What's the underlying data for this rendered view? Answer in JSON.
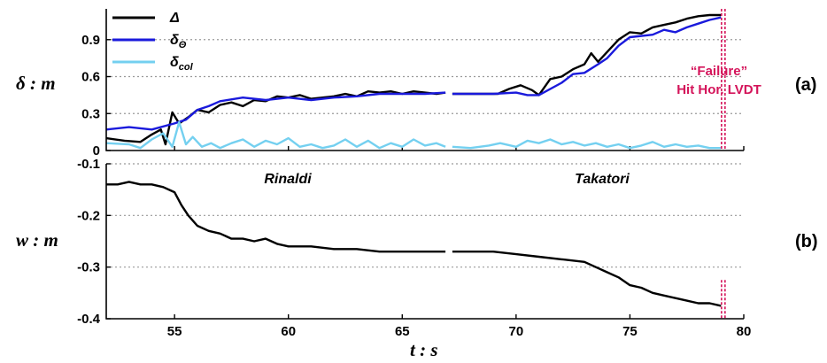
{
  "chart_data": [
    {
      "id": "a",
      "type": "line",
      "panel_label": "(a)",
      "ylabel": "δ : m",
      "xlim": [
        52,
        80
      ],
      "ylim": [
        0,
        1.15
      ],
      "yticks": [
        "0",
        "0.3",
        "0.6",
        "0.9"
      ],
      "ytick_values": [
        0,
        0.3,
        0.6,
        0.9
      ],
      "grid": "horizontal dotted",
      "legend_position": "top-left",
      "legend": [
        {
          "main": "Δ",
          "sub": ""
        },
        {
          "main": "δ",
          "sub": "Θ"
        },
        {
          "main": "δ",
          "sub": "col"
        }
      ],
      "failure_label": [
        "“Failure”",
        "Hit Hor. LVDT"
      ],
      "failure_x": 79.1,
      "colors": {
        "delta": "#000000",
        "theta": "#1a1adc",
        "col": "#74d0f0",
        "failure": "#d4145a"
      },
      "series": [
        {
          "name": "Δ",
          "segments": [
            [
              [
                52,
                0.1
              ],
              [
                52.8,
                0.08
              ],
              [
                53.5,
                0.07
              ],
              [
                54,
                0.13
              ],
              [
                54.4,
                0.17
              ],
              [
                54.6,
                0.05
              ],
              [
                54.9,
                0.31
              ],
              [
                55.2,
                0.22
              ],
              [
                55.6,
                0.27
              ],
              [
                56,
                0.33
              ],
              [
                56.5,
                0.31
              ],
              [
                57,
                0.37
              ],
              [
                57.5,
                0.39
              ],
              [
                58,
                0.36
              ],
              [
                58.5,
                0.41
              ],
              [
                59,
                0.4
              ],
              [
                59.5,
                0.44
              ],
              [
                60,
                0.43
              ],
              [
                60.5,
                0.45
              ],
              [
                61,
                0.42
              ],
              [
                61.5,
                0.43
              ],
              [
                62,
                0.44
              ],
              [
                62.5,
                0.46
              ],
              [
                63,
                0.44
              ],
              [
                63.5,
                0.48
              ],
              [
                64,
                0.47
              ],
              [
                64.5,
                0.48
              ],
              [
                65,
                0.46
              ],
              [
                65.5,
                0.48
              ],
              [
                66,
                0.47
              ],
              [
                66.5,
                0.46
              ],
              [
                66.9,
                0.47
              ]
            ],
            [
              [
                67.2,
                0.46
              ],
              [
                68,
                0.46
              ],
              [
                68.8,
                0.46
              ],
              [
                69.2,
                0.46
              ],
              [
                69.7,
                0.5
              ],
              [
                70.2,
                0.53
              ],
              [
                70.7,
                0.49
              ],
              [
                71,
                0.45
              ],
              [
                71.5,
                0.58
              ],
              [
                72,
                0.6
              ],
              [
                72.5,
                0.66
              ],
              [
                73,
                0.7
              ],
              [
                73.3,
                0.79
              ],
              [
                73.6,
                0.72
              ],
              [
                74,
                0.8
              ],
              [
                74.5,
                0.9
              ],
              [
                75,
                0.96
              ],
              [
                75.5,
                0.95
              ],
              [
                76,
                1.0
              ],
              [
                76.5,
                1.02
              ],
              [
                77,
                1.04
              ],
              [
                77.5,
                1.07
              ],
              [
                78,
                1.09
              ],
              [
                78.5,
                1.1
              ],
              [
                79,
                1.1
              ]
            ]
          ]
        },
        {
          "name": "δΘ",
          "segments": [
            [
              [
                52,
                0.17
              ],
              [
                53,
                0.19
              ],
              [
                54,
                0.17
              ],
              [
                55,
                0.22
              ],
              [
                55.5,
                0.25
              ],
              [
                56,
                0.33
              ],
              [
                56.5,
                0.36
              ],
              [
                57,
                0.4
              ],
              [
                58,
                0.43
              ],
              [
                59,
                0.41
              ],
              [
                60,
                0.43
              ],
              [
                61,
                0.41
              ],
              [
                62,
                0.43
              ],
              [
                63,
                0.44
              ],
              [
                64,
                0.46
              ],
              [
                65,
                0.46
              ],
              [
                66,
                0.46
              ],
              [
                66.9,
                0.47
              ]
            ],
            [
              [
                67.2,
                0.46
              ],
              [
                68,
                0.46
              ],
              [
                69,
                0.46
              ],
              [
                70,
                0.47
              ],
              [
                70.5,
                0.45
              ],
              [
                71,
                0.45
              ],
              [
                72,
                0.55
              ],
              [
                72.5,
                0.62
              ],
              [
                73,
                0.63
              ],
              [
                73.6,
                0.7
              ],
              [
                74,
                0.75
              ],
              [
                74.5,
                0.85
              ],
              [
                75,
                0.92
              ],
              [
                76,
                0.94
              ],
              [
                76.5,
                0.98
              ],
              [
                77,
                0.96
              ],
              [
                77.5,
                1.0
              ],
              [
                78,
                1.03
              ],
              [
                78.5,
                1.06
              ],
              [
                79,
                1.08
              ]
            ]
          ]
        },
        {
          "name": "δcol",
          "segments": [
            [
              [
                52,
                0.06
              ],
              [
                53,
                0.05
              ],
              [
                53.5,
                0.02
              ],
              [
                54,
                0.09
              ],
              [
                54.5,
                0.14
              ],
              [
                54.9,
                0.03
              ],
              [
                55.2,
                0.23
              ],
              [
                55.5,
                0.05
              ],
              [
                55.8,
                0.11
              ],
              [
                56.2,
                0.03
              ],
              [
                56.6,
                0.06
              ],
              [
                57,
                0.02
              ],
              [
                57.5,
                0.06
              ],
              [
                58,
                0.09
              ],
              [
                58.5,
                0.03
              ],
              [
                59,
                0.08
              ],
              [
                59.5,
                0.05
              ],
              [
                60,
                0.1
              ],
              [
                60.5,
                0.03
              ],
              [
                61,
                0.05
              ],
              [
                61.5,
                0.02
              ],
              [
                62,
                0.04
              ],
              [
                62.5,
                0.09
              ],
              [
                63,
                0.03
              ],
              [
                63.5,
                0.08
              ],
              [
                64,
                0.02
              ],
              [
                64.5,
                0.06
              ],
              [
                65,
                0.03
              ],
              [
                65.5,
                0.09
              ],
              [
                66,
                0.04
              ],
              [
                66.5,
                0.06
              ],
              [
                66.9,
                0.03
              ]
            ],
            [
              [
                67.2,
                0.03
              ],
              [
                68,
                0.02
              ],
              [
                68.8,
                0.04
              ],
              [
                69.3,
                0.06
              ],
              [
                70,
                0.03
              ],
              [
                70.5,
                0.08
              ],
              [
                71,
                0.06
              ],
              [
                71.5,
                0.09
              ],
              [
                72,
                0.05
              ],
              [
                72.5,
                0.07
              ],
              [
                73,
                0.04
              ],
              [
                73.5,
                0.06
              ],
              [
                74,
                0.03
              ],
              [
                74.5,
                0.05
              ],
              [
                75,
                0.02
              ],
              [
                75.5,
                0.04
              ],
              [
                76,
                0.07
              ],
              [
                76.5,
                0.03
              ],
              [
                77,
                0.05
              ],
              [
                77.5,
                0.03
              ],
              [
                78,
                0.04
              ],
              [
                78.5,
                0.02
              ],
              [
                79,
                0.02
              ]
            ]
          ]
        }
      ]
    },
    {
      "id": "b",
      "type": "line",
      "panel_label": "(b)",
      "ylabel": "w : m",
      "xlabel": "t : s",
      "xlim": [
        52,
        80
      ],
      "ylim": [
        -0.4,
        -0.1
      ],
      "xticks": [
        "55",
        "60",
        "65",
        "70",
        "75",
        "80"
      ],
      "xtick_values": [
        55,
        60,
        65,
        70,
        75,
        80
      ],
      "yticks": [
        "-0.1",
        "-0.2",
        "-0.3",
        "-0.4"
      ],
      "ytick_values": [
        -0.1,
        -0.2,
        -0.3,
        -0.4
      ],
      "grid": "horizontal dotted",
      "annotations": [
        "Rinaldi",
        "Takatori"
      ],
      "failure_x": 79.1,
      "series": [
        {
          "name": "w",
          "segments": [
            [
              [
                52,
                -0.14
              ],
              [
                52.5,
                -0.14
              ],
              [
                53,
                -0.135
              ],
              [
                53.5,
                -0.14
              ],
              [
                54,
                -0.14
              ],
              [
                54.5,
                -0.145
              ],
              [
                55,
                -0.155
              ],
              [
                55.3,
                -0.18
              ],
              [
                55.6,
                -0.2
              ],
              [
                56,
                -0.22
              ],
              [
                56.5,
                -0.23
              ],
              [
                57,
                -0.235
              ],
              [
                57.5,
                -0.245
              ],
              [
                58,
                -0.245
              ],
              [
                58.5,
                -0.25
              ],
              [
                59,
                -0.245
              ],
              [
                59.5,
                -0.255
              ],
              [
                60,
                -0.26
              ],
              [
                61,
                -0.26
              ],
              [
                62,
                -0.265
              ],
              [
                63,
                -0.265
              ],
              [
                64,
                -0.27
              ],
              [
                65,
                -0.27
              ],
              [
                66,
                -0.27
              ],
              [
                66.9,
                -0.27
              ]
            ],
            [
              [
                67.2,
                -0.27
              ],
              [
                68,
                -0.27
              ],
              [
                69,
                -0.27
              ],
              [
                70,
                -0.275
              ],
              [
                71,
                -0.28
              ],
              [
                72,
                -0.285
              ],
              [
                73,
                -0.29
              ],
              [
                73.5,
                -0.3
              ],
              [
                74,
                -0.31
              ],
              [
                74.5,
                -0.32
              ],
              [
                75,
                -0.335
              ],
              [
                75.5,
                -0.34
              ],
              [
                76,
                -0.35
              ],
              [
                76.5,
                -0.355
              ],
              [
                77,
                -0.36
              ],
              [
                77.5,
                -0.365
              ],
              [
                78,
                -0.37
              ],
              [
                78.5,
                -0.37
              ],
              [
                79,
                -0.375
              ]
            ]
          ]
        }
      ]
    }
  ]
}
